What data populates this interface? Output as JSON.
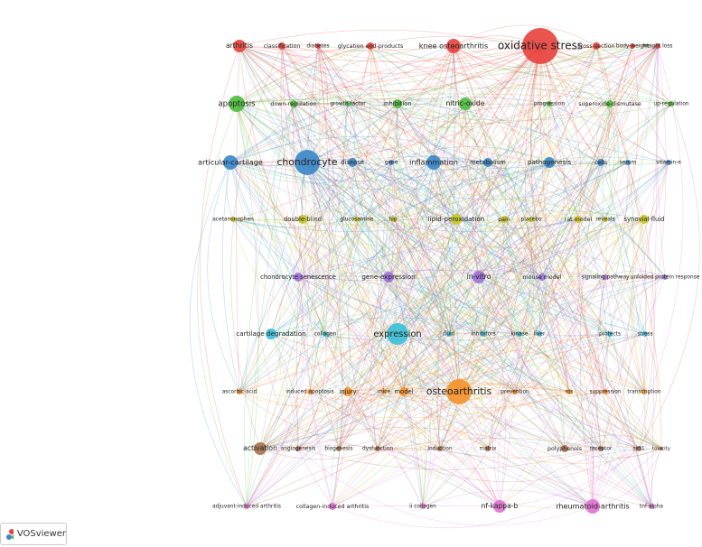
{
  "clusters": [
    {
      "color": "#e8413c",
      "nodes": [
        "arthritis",
        "classification",
        "diabetes",
        "glycation end-products",
        "knee osteoarthritis",
        "oxidative stress",
        "cross-section",
        "body-weight",
        "weight loss"
      ]
    },
    {
      "color": "#4cbb3c",
      "nodes": [
        "apoptosis",
        "down-regulation",
        "growth factor",
        "inhibition",
        "nitric-oxide",
        "progression",
        "superoxide-dismutase",
        "up-regulation"
      ]
    },
    {
      "color": "#3a86c8",
      "nodes": [
        "articular-cartilage",
        "chondrocyte",
        "disease",
        "gene",
        "inflammation",
        "metabolism",
        "pathogenesis",
        "cells",
        "serum",
        "vitamin-e"
      ]
    },
    {
      "color": "#c8c820",
      "nodes": [
        "acetaminophen",
        "double-blind",
        "glucosamine",
        "hip",
        "lipid-peroxidation",
        "pain",
        "placebo",
        "rat model",
        "reveals",
        "synovial-fluid"
      ]
    },
    {
      "color": "#a070d8",
      "nodes": [
        "chondrocyte senescence",
        "gene-expression",
        "in-vitro",
        "mouse model",
        "signaling pathway",
        "unfolded protein response"
      ]
    },
    {
      "color": "#38c0d8",
      "nodes": [
        "cartilage degradation",
        "collagen",
        "expression",
        "fluid",
        "inhibitors",
        "kinase",
        "liver",
        "protects",
        "stress"
      ]
    },
    {
      "color": "#f5922a",
      "nodes": [
        "ascorbic-acid",
        "induced apoptosis",
        "injury",
        "mice",
        "model",
        "osteoarthritis",
        "prevention",
        "ros",
        "suppression",
        "transcription"
      ]
    },
    {
      "color": "#a87050",
      "nodes": [
        "activation",
        "angiogenesis",
        "biogenesis",
        "dysfunction",
        "induction",
        "matrix",
        "polyphenols",
        "receptor",
        "sirt1",
        "toxicity"
      ]
    },
    {
      "color": "#e070d0",
      "nodes": [
        "adjuvant-induced arthritis",
        "collagen-induced arthritis",
        "ii collagen",
        "nf-kappa-b",
        "rheumatoid-arthritis",
        "tnf-alpha"
      ]
    }
  ],
  "logo": "VOSviewer"
}
